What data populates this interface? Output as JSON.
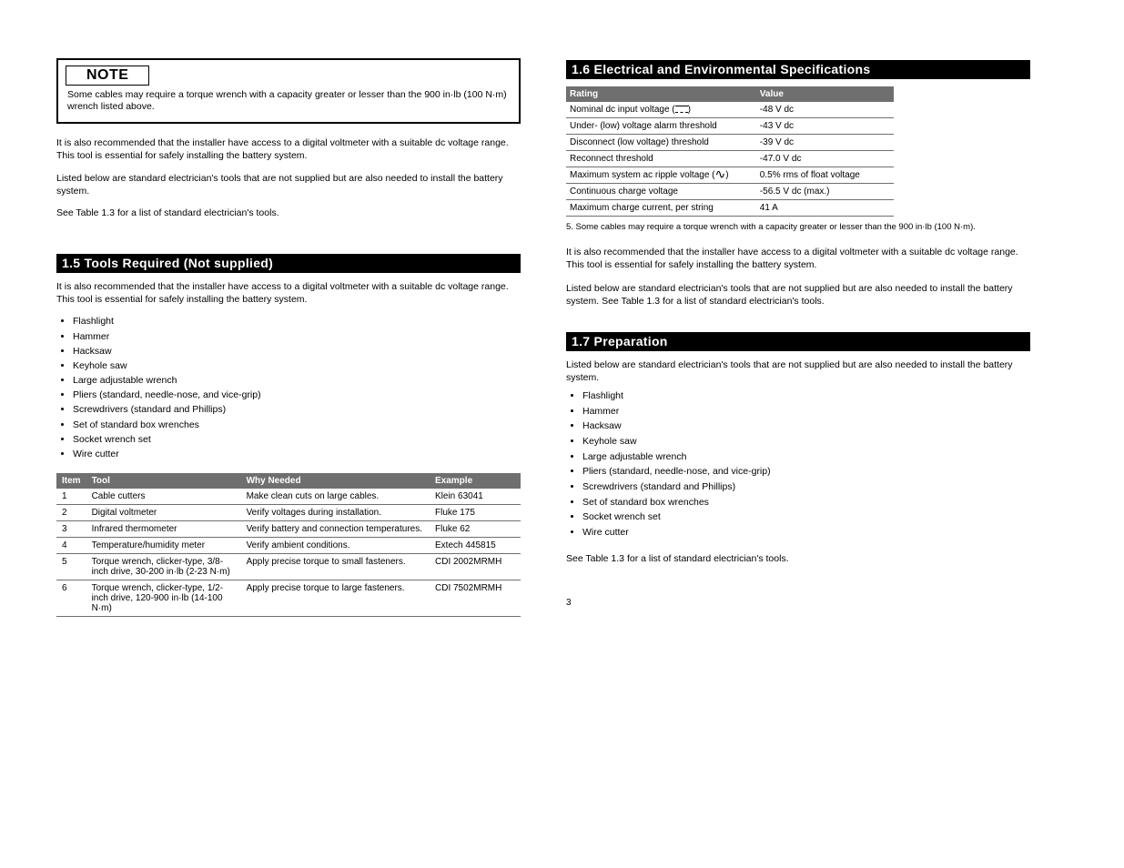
{
  "left": {
    "note_label": "NOTE",
    "note_text": "Some cables may require a torque wrench with a capacity greater or lesser than the 900 in·lb (100 N·m) wrench listed above.",
    "para1": "It is also recommended that the installer have access to a digital voltmeter with a suitable dc voltage range. This tool is essential for safely installing the battery system.",
    "para2": "Listed below are standard electrician's tools that are not supplied but are also needed to install the battery system.",
    "para_ref": "See Table 1.3 for a list of standard electrician's tools.",
    "tools_section_title": "1.5 Tools Required (Not supplied)",
    "tools_intro": "It is also recommended that the installer have access to a digital voltmeter with a suitable dc voltage range. This tool is essential for safely installing the battery system.",
    "tools_list": [
      "Flashlight",
      "Hammer",
      "Hacksaw",
      "Keyhole saw",
      "Large adjustable wrench",
      "Pliers (standard, needle-nose, and vice-grip)",
      "Screwdrivers (standard and Phillips)",
      "Set of standard box wrenches",
      "Socket wrench set",
      "Wire cutter"
    ],
    "table1": {
      "headers": [
        "Item",
        "Tool",
        "Why Needed",
        "Example"
      ],
      "rows": [
        [
          "1",
          "Cable cutters",
          "Make clean cuts on large cables.",
          "Klein 63041"
        ],
        [
          "2",
          "Digital voltmeter",
          "Verify voltages during installation.",
          "Fluke 175"
        ],
        [
          "3",
          "Infrared thermometer",
          "Verify battery and connection temperatures.",
          "Fluke 62"
        ],
        [
          "4",
          "Temperature/humidity meter",
          "Verify ambient conditions.",
          "Extech 445815"
        ],
        [
          "5",
          "Torque wrench, clicker-type, 3/8-inch drive, 30-200 in·lb (2-23 N·m)",
          "Apply precise torque to small fasteners.",
          "CDI 2002MRMH"
        ],
        [
          "6",
          "Torque wrench, clicker-type, 1/2-inch drive, 120-900 in·lb (14-100 N·m)",
          "Apply precise torque to large fasteners.",
          "CDI 7502MRMH"
        ]
      ]
    }
  },
  "right": {
    "spec_section_title": "1.6 Electrical and Environmental Specifications",
    "spec_table": {
      "headers": [
        "Rating",
        "Value"
      ],
      "rows": [
        [
          "Nominal dc input voltage (⎓)",
          "-48 V dc"
        ],
        [
          "Under- (low) voltage alarm threshold",
          "-43 V dc"
        ],
        [
          "Disconnect (low voltage) threshold",
          "-39 V dc"
        ],
        [
          "Reconnect threshold",
          "-47.0 V dc"
        ],
        [
          "Maximum system ac ripple voltage (∿)",
          "0.5% rms of float voltage"
        ],
        [
          "Continuous charge voltage",
          "-56.5 V dc (max.)"
        ],
        [
          "Maximum charge current, per string",
          "41 A"
        ]
      ]
    },
    "spec_note": "5. Some cables may require a torque wrench with a capacity greater or lesser than the 900 in·lb (100 N·m).",
    "spec_para1": "It is also recommended that the installer have access to a digital voltmeter with a suitable dc voltage range. This tool is essential for safely installing the battery system.",
    "spec_para2": "Listed below are standard electrician's tools that are not supplied but are also needed to install the battery system. See Table 1.3 for a list of standard electrician's tools.",
    "prep_section_title": "1.7 Preparation",
    "prep_intro": "Listed below are standard electrician's tools that are not supplied but are also needed to install the battery system.",
    "prep_list": [
      "Flashlight",
      "Hammer",
      "Hacksaw",
      "Keyhole saw",
      "Large adjustable wrench",
      "Pliers (standard, needle-nose, and vice-grip)",
      "Screwdrivers (standard and Phillips)",
      "Set of standard box wrenches",
      "Socket wrench set",
      "Wire cutter"
    ],
    "prep_para": "See Table 1.3 for a list of standard electrician's tools."
  },
  "footer": "3"
}
